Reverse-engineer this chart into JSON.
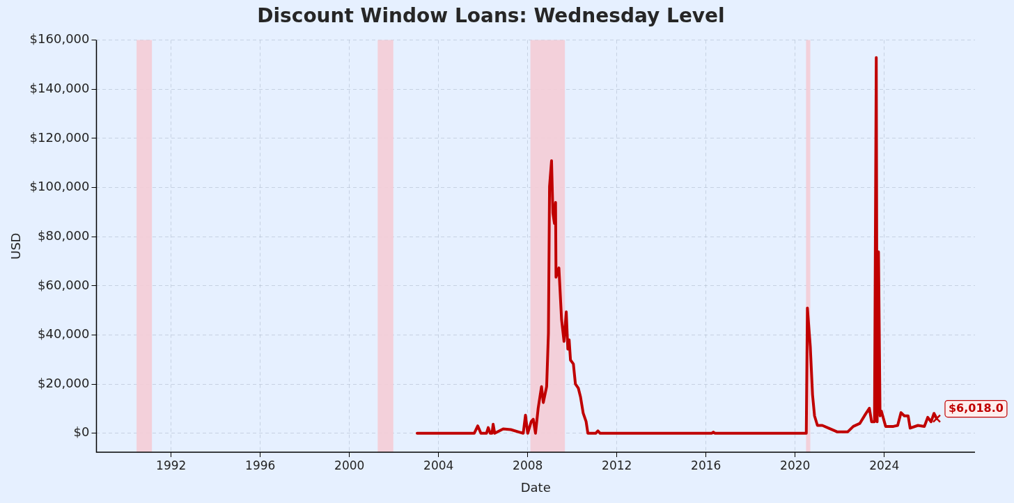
{
  "chart_data": {
    "type": "line",
    "title": "Discount Window Loans: Wednesday Level",
    "xlabel": "Date",
    "ylabel": "USD",
    "xlim": [
      1988.65,
      2028.07
    ],
    "xticks": [
      1992,
      1996,
      2000,
      2004,
      2008,
      2012,
      2016,
      2020,
      2024
    ],
    "ylim": [
      -7700,
      160000
    ],
    "yticks": [
      {
        "value": 0,
        "label": "$0"
      },
      {
        "value": 20000,
        "label": "$20,000"
      },
      {
        "value": 40000,
        "label": "$40,000"
      },
      {
        "value": 60000,
        "label": "$60,000"
      },
      {
        "value": 80000,
        "label": "$80,000"
      },
      {
        "value": 100000,
        "label": "$100,000"
      },
      {
        "value": 120000,
        "label": "$120,000"
      },
      {
        "value": 140000,
        "label": "$140,000"
      },
      {
        "value": 160000,
        "label": "$160,000"
      }
    ],
    "grid": true,
    "legend": false,
    "line_style": "solid",
    "series": [
      {
        "color": "#c00000",
        "x": [
          2003.04,
          2005.6,
          2005.76,
          2005.9,
          2006.15,
          2006.23,
          2006.32,
          2006.4,
          2006.45,
          2006.52,
          2006.9,
          2007.24,
          2007.8,
          2007.9,
          2008.0,
          2008.16,
          2008.25,
          2008.35,
          2008.47,
          2008.62,
          2008.7,
          2008.85,
          2008.93,
          2008.98,
          2009.07,
          2009.13,
          2009.2,
          2009.25,
          2009.27,
          2009.4,
          2009.52,
          2009.63,
          2009.73,
          2009.8,
          2009.86,
          2009.92,
          2010.05,
          2010.14,
          2010.27,
          2010.37,
          2010.49,
          2010.62,
          2010.7,
          2011.05,
          2011.15,
          2011.25,
          2016.25,
          2016.33,
          2016.41,
          2020.5,
          2020.55,
          2020.68,
          2020.78,
          2020.87,
          2021.0,
          2021.22,
          2021.5,
          2021.88,
          2022.36,
          2022.61,
          2022.9,
          2023.15,
          2023.33,
          2023.43,
          2023.56,
          2023.64,
          2023.68,
          2023.74,
          2023.81,
          2023.87,
          2024.06,
          2024.41,
          2024.6,
          2024.75,
          2024.9,
          2025.07,
          2025.16,
          2025.51,
          2025.8,
          2025.95,
          2026.1,
          2026.23,
          2026.35
        ],
        "values": [
          0,
          0,
          3000,
          0,
          0,
          2300,
          0,
          0,
          3700,
          0,
          1800,
          1500,
          0,
          7400,
          0,
          4800,
          5700,
          0,
          10200,
          19000,
          12500,
          19000,
          40800,
          100400,
          110900,
          89600,
          85400,
          93900,
          63500,
          67300,
          46200,
          37400,
          49400,
          34300,
          38000,
          29800,
          28200,
          20100,
          18400,
          14800,
          8200,
          4800,
          0,
          0,
          1000,
          0,
          0,
          500,
          0,
          0,
          51000,
          35200,
          15700,
          7100,
          3200,
          3200,
          2100,
          600,
          600,
          2800,
          4000,
          7700,
          10200,
          4700,
          4700,
          152900,
          4700,
          73800,
          7100,
          9000,
          2800,
          2800,
          3200,
          8400,
          7100,
          7100,
          2100,
          3200,
          2800,
          6500,
          4700,
          8100,
          6018
        ]
      }
    ],
    "bands": [
      {
        "axis": "x",
        "from": 1990.45,
        "to": 1991.14,
        "color": "#f4ccd6"
      },
      {
        "axis": "x",
        "from": 2001.27,
        "to": 2001.97,
        "color": "#f4ccd6"
      },
      {
        "axis": "x",
        "from": 2008.12,
        "to": 2009.67,
        "color": "#f4ccd6"
      },
      {
        "axis": "x",
        "from": 2020.49,
        "to": 2020.68,
        "color": "#f4ccd6"
      }
    ],
    "annotations": [
      {
        "text": "$6,018.0",
        "x": 2026.35,
        "y": 6018
      }
    ]
  }
}
